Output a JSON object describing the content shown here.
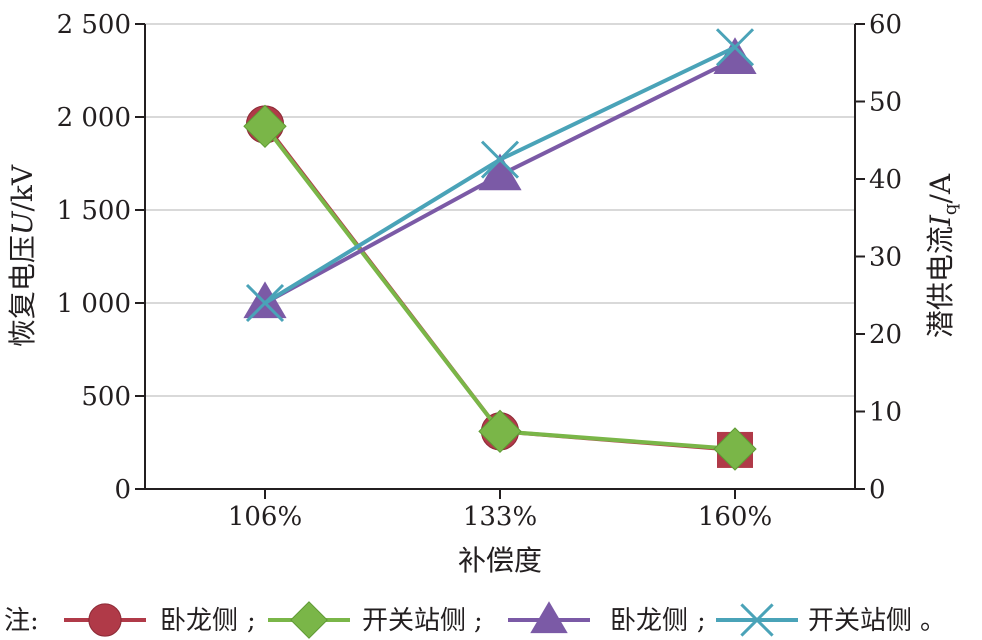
{
  "chart_data": {
    "type": "line",
    "categories": [
      "106%",
      "133%",
      "160%"
    ],
    "xlabel": "补偿度",
    "ylabel_left": {
      "main": "恢复电压",
      "italic": "U",
      "unit": "/kV"
    },
    "ylabel_right": {
      "main": "潜供电流",
      "italic": "I",
      "sub": "q",
      "unit": "/A"
    },
    "ylim_left": [
      0,
      2500
    ],
    "yticks_left": [
      {
        "value": 0,
        "label": "0"
      },
      {
        "value": 500,
        "label": "500"
      },
      {
        "value": 1000,
        "label": "1 000"
      },
      {
        "value": 1500,
        "label": "1 500"
      },
      {
        "value": 2000,
        "label": "2 000"
      },
      {
        "value": 2500,
        "label": "2 500"
      }
    ],
    "ylim_right": [
      0,
      60
    ],
    "yticks_right": [
      {
        "value": 0,
        "label": "0"
      },
      {
        "value": 10,
        "label": "10"
      },
      {
        "value": 20,
        "label": "20"
      },
      {
        "value": 30,
        "label": "30"
      },
      {
        "value": 40,
        "label": "40"
      },
      {
        "value": 50,
        "label": "50"
      },
      {
        "value": 60,
        "label": "60"
      }
    ],
    "grid": true,
    "series": [
      {
        "name": "卧龙侧",
        "axis": "left",
        "color": "#b03a48",
        "marker": "circle",
        "values": [
          1960,
          310,
          210
        ]
      },
      {
        "name": "开关站侧",
        "axis": "left",
        "color": "#7ab648",
        "marker": "diamond",
        "values": [
          1950,
          310,
          215
        ]
      },
      {
        "name": "卧龙侧",
        "axis": "right",
        "color": "#7b5aa6",
        "marker": "triangle",
        "values": [
          24,
          40.5,
          55.5
        ]
      },
      {
        "name": "开关站侧",
        "axis": "right",
        "color": "#4aa3b8",
        "marker": "x",
        "values": [
          24,
          42.5,
          57
        ]
      }
    ]
  },
  "legend": {
    "prefix": "注:",
    "separator": ";",
    "terminator": "。",
    "position": "bottom"
  }
}
